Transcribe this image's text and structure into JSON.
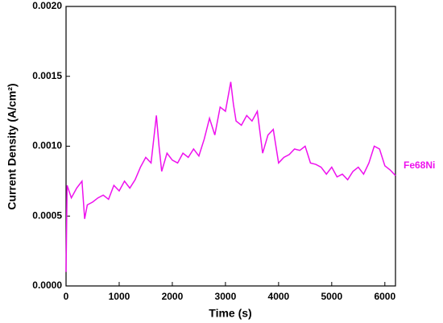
{
  "chart_data": {
    "type": "line",
    "x_label": "Time (s)",
    "y_label": "Current Density (A/cm²)",
    "xlim": [
      0,
      6200
    ],
    "xticks": [
      0,
      1000,
      2000,
      3000,
      4000,
      5000,
      6000
    ],
    "ylim": [
      0,
      0.002
    ],
    "yticks": [
      {
        "value": 0,
        "label": "0.0000"
      },
      0.0005,
      {
        "value": 0.001,
        "label": "0.0010"
      },
      0.0015,
      {
        "value": 0.002,
        "label": "0.0020"
      }
    ],
    "x": [
      0,
      20,
      100,
      200,
      300,
      350,
      400,
      500,
      600,
      700,
      800,
      900,
      1000,
      1100,
      1200,
      1300,
      1400,
      1500,
      1600,
      1700,
      1750,
      1800,
      1900,
      2000,
      2100,
      2200,
      2300,
      2400,
      2500,
      2600,
      2700,
      2800,
      2900,
      3000,
      3100,
      3150,
      3200,
      3300,
      3400,
      3500,
      3600,
      3700,
      3800,
      3900,
      4000,
      4100,
      4200,
      4300,
      4400,
      4500,
      4600,
      4700,
      4800,
      4900,
      5000,
      5100,
      5200,
      5300,
      5400,
      5500,
      5600,
      5700,
      5800,
      5900,
      6000,
      6100,
      6200
    ],
    "series": [
      {
        "name": "Fe68Ni",
        "color": "#ee10ee",
        "values": [
          0.0001,
          0.00072,
          0.00063,
          0.0007,
          0.00075,
          0.00048,
          0.00058,
          0.0006,
          0.00063,
          0.00065,
          0.00062,
          0.00072,
          0.00068,
          0.00075,
          0.0007,
          0.00076,
          0.00085,
          0.00092,
          0.00088,
          0.00122,
          0.001,
          0.00082,
          0.00095,
          0.0009,
          0.00088,
          0.00095,
          0.00092,
          0.00098,
          0.00093,
          0.00105,
          0.0012,
          0.00108,
          0.00128,
          0.00125,
          0.00146,
          0.0013,
          0.00118,
          0.00115,
          0.00122,
          0.00118,
          0.00125,
          0.00095,
          0.00108,
          0.00112,
          0.00088,
          0.00092,
          0.00094,
          0.00098,
          0.00097,
          0.001,
          0.00088,
          0.00087,
          0.00085,
          0.0008,
          0.00085,
          0.00078,
          0.0008,
          0.00076,
          0.00082,
          0.00085,
          0.0008,
          0.00088,
          0.001,
          0.00098,
          0.00086,
          0.00083,
          0.00079
        ]
      }
    ]
  }
}
